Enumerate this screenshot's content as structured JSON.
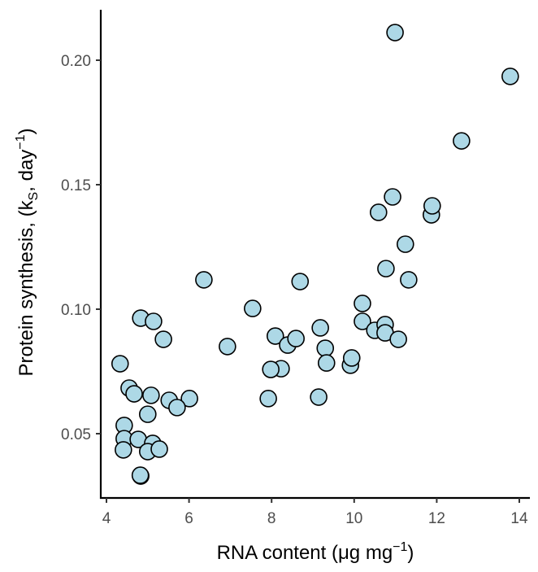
{
  "chart_data": {
    "type": "scatter",
    "title": "",
    "xlabel": "RNA content (μg mg⁻¹)",
    "ylabel": "Protein synthesis, (kS, day⁻¹)",
    "xlabel_parts": {
      "main": "RNA content (μg mg",
      "sup": "−1",
      "end": ")"
    },
    "ylabel_parts": {
      "main": "Protein synthesis, (k",
      "sub": "S",
      "mid": ", day",
      "sup": "−1",
      "end": ")"
    },
    "xlim": [
      3.85,
      14.25
    ],
    "ylim": [
      0.0255,
      0.2215
    ],
    "xticks": [
      4,
      6,
      8,
      10,
      12,
      14
    ],
    "xtick_labels": [
      "4",
      "6",
      "8",
      "10",
      "12",
      "14"
    ],
    "yticks": [
      0.05,
      0.1,
      0.15,
      0.2
    ],
    "ytick_labels": [
      "0.05",
      "0.10",
      "0.15",
      "0.20"
    ],
    "grid": false,
    "point_fill": "#ADD8E6",
    "point_stroke": "#000000",
    "points": [
      [
        4.83,
        0.0964
      ],
      [
        5.14,
        0.0951
      ],
      [
        5.38,
        0.0879
      ],
      [
        4.33,
        0.0781
      ],
      [
        4.55,
        0.0683
      ],
      [
        4.67,
        0.066
      ],
      [
        5.08,
        0.0654
      ],
      [
        5.52,
        0.0634
      ],
      [
        6.01,
        0.0641
      ],
      [
        5.71,
        0.0605
      ],
      [
        5.0,
        0.0578
      ],
      [
        4.43,
        0.0533
      ],
      [
        4.43,
        0.048
      ],
      [
        4.77,
        0.0477
      ],
      [
        5.12,
        0.0461
      ],
      [
        5.0,
        0.0428
      ],
      [
        5.28,
        0.0438
      ],
      [
        4.41,
        0.0435
      ],
      [
        4.83,
        0.033
      ],
      [
        4.82,
        0.0333
      ],
      [
        7.54,
        0.1003
      ],
      [
        6.93,
        0.085
      ],
      [
        6.36,
        0.1118
      ],
      [
        7.92,
        0.0641
      ],
      [
        8.09,
        0.0892
      ],
      [
        8.23,
        0.0761
      ],
      [
        8.39,
        0.0856
      ],
      [
        8.59,
        0.0882
      ],
      [
        8.69,
        0.1111
      ],
      [
        9.18,
        0.0925
      ],
      [
        9.14,
        0.0647
      ],
      [
        9.3,
        0.0843
      ],
      [
        9.33,
        0.0784
      ],
      [
        9.91,
        0.0775
      ],
      [
        9.94,
        0.0804
      ],
      [
        10.2,
        0.1023
      ],
      [
        10.2,
        0.0951
      ],
      [
        10.5,
        0.0915
      ],
      [
        10.75,
        0.0938
      ],
      [
        10.75,
        0.0905
      ],
      [
        10.77,
        0.1163
      ],
      [
        11.07,
        0.0879
      ],
      [
        10.59,
        0.1389
      ],
      [
        10.93,
        0.1451
      ],
      [
        11.24,
        0.1261
      ],
      [
        11.32,
        0.1118
      ],
      [
        11.87,
        0.1379
      ],
      [
        11.89,
        0.1415
      ],
      [
        12.6,
        0.1676
      ],
      [
        13.78,
        0.1935
      ],
      [
        10.99,
        0.2111
      ],
      [
        7.98,
        0.0758
      ]
    ]
  }
}
